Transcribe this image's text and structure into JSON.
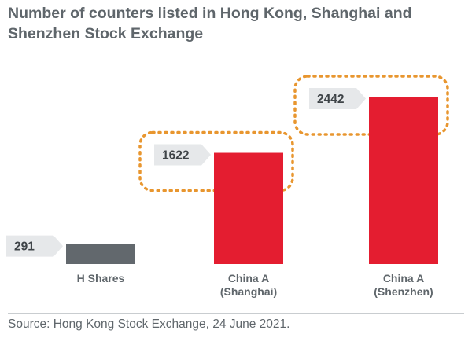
{
  "title": "Number of counters listed in Hong Kong, Shanghai and Shenzhen Stock Exchange",
  "source": "Source: Hong Kong Stock Exchange, 24 June 2021.",
  "chart_data": {
    "type": "bar",
    "title": "Number of counters listed in Hong Kong, Shanghai and Shenzhen Stock Exchange",
    "categories": [
      "H Shares",
      "China A (Shanghai)",
      "China A (Shenzhen)"
    ],
    "category_lines": [
      [
        "H Shares"
      ],
      [
        "China A",
        "(Shanghai)"
      ],
      [
        "China A",
        "(Shenzhen)"
      ]
    ],
    "values": [
      291,
      1622,
      2442
    ],
    "value_labels": [
      "291",
      "1622",
      "2442"
    ],
    "ylim": [
      0,
      2800
    ],
    "grid": false,
    "colors": [
      "#62686d",
      "#e41d30",
      "#e41d30"
    ],
    "highlight_color": "#e8962f",
    "highlighted": [
      false,
      true,
      true
    ]
  }
}
